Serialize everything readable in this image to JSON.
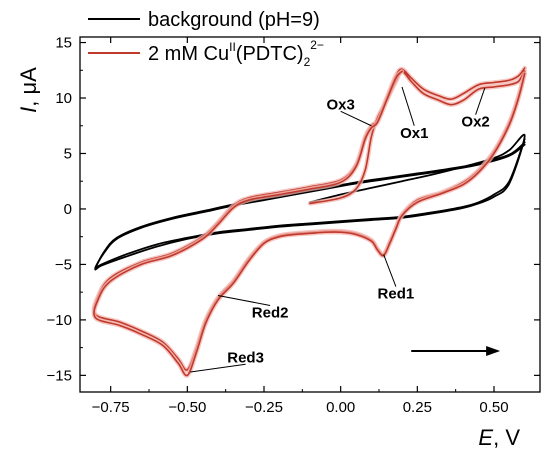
{
  "chart_data": {
    "type": "line",
    "xlabel_var": "E",
    "xlabel_unit": ", V",
    "ylabel_var": "I",
    "ylabel_unit": ", μA",
    "xlim": [
      -0.85,
      0.65
    ],
    "ylim": [
      -16.5,
      15.5
    ],
    "xticks": [
      -0.75,
      -0.5,
      -0.25,
      0.0,
      0.25,
      0.5
    ],
    "xtick_labels": [
      "−0.75",
      "−0.50",
      "−0.25",
      "0.00",
      "0.25",
      "0.50"
    ],
    "yticks": [
      -15,
      -10,
      -5,
      0,
      5,
      10,
      15
    ],
    "ytick_labels": [
      "−15",
      "−10",
      "−5",
      "0",
      "5",
      "10",
      "15"
    ],
    "legend_position": "top-left",
    "series": [
      {
        "name": "background (pH=9)",
        "color": "#000000",
        "cycles": [
          [
            [
              -0.1,
              0.6
            ],
            [
              0.0,
              1.3
            ],
            [
              0.1,
              1.9
            ],
            [
              0.2,
              2.5
            ],
            [
              0.3,
              3.1
            ],
            [
              0.4,
              3.8
            ],
            [
              0.5,
              4.6
            ],
            [
              0.55,
              5.3
            ],
            [
              0.6,
              6.6
            ],
            [
              0.55,
              2.3
            ],
            [
              0.5,
              1.1
            ],
            [
              0.45,
              0.5
            ],
            [
              0.4,
              0.1
            ],
            [
              0.3,
              -0.4
            ],
            [
              0.2,
              -0.8
            ],
            [
              0.1,
              -1.0
            ],
            [
              0.0,
              -1.2
            ],
            [
              -0.1,
              -1.4
            ],
            [
              -0.2,
              -1.6
            ],
            [
              -0.3,
              -1.9
            ],
            [
              -0.4,
              -2.2
            ],
            [
              -0.5,
              -2.7
            ],
            [
              -0.6,
              -3.4
            ],
            [
              -0.7,
              -4.3
            ],
            [
              -0.78,
              -5.1
            ],
            [
              -0.8,
              -5.4
            ],
            [
              -0.77,
              -3.8
            ],
            [
              -0.73,
              -2.6
            ],
            [
              -0.65,
              -1.6
            ],
            [
              -0.55,
              -0.8
            ],
            [
              -0.45,
              -0.2
            ],
            [
              -0.35,
              0.4
            ],
            [
              -0.25,
              0.9
            ],
            [
              -0.15,
              1.4
            ],
            [
              -0.05,
              1.9
            ],
            [
              0.05,
              2.4
            ],
            [
              0.15,
              2.8
            ],
            [
              0.25,
              3.2
            ],
            [
              0.35,
              3.6
            ],
            [
              0.45,
              4.1
            ],
            [
              0.55,
              4.9
            ],
            [
              0.6,
              6.0
            ]
          ],
          [
            [
              0.6,
              6.3
            ],
            [
              0.55,
              2.5
            ],
            [
              0.5,
              1.3
            ],
            [
              0.45,
              0.6
            ],
            [
              0.4,
              0.2
            ],
            [
              0.3,
              -0.3
            ],
            [
              0.2,
              -0.7
            ],
            [
              0.1,
              -0.9
            ],
            [
              0.0,
              -1.1
            ],
            [
              -0.1,
              -1.3
            ],
            [
              -0.2,
              -1.5
            ],
            [
              -0.3,
              -1.8
            ],
            [
              -0.4,
              -2.1
            ],
            [
              -0.5,
              -2.6
            ],
            [
              -0.6,
              -3.2
            ],
            [
              -0.7,
              -4.1
            ],
            [
              -0.78,
              -5.0
            ],
            [
              -0.8,
              -5.3
            ],
            [
              -0.77,
              -3.9
            ],
            [
              -0.73,
              -2.7
            ],
            [
              -0.65,
              -1.7
            ],
            [
              -0.55,
              -0.9
            ],
            [
              -0.45,
              -0.3
            ],
            [
              -0.35,
              0.3
            ],
            [
              -0.25,
              0.8
            ],
            [
              -0.15,
              1.3
            ],
            [
              -0.05,
              1.8
            ],
            [
              0.05,
              2.3
            ],
            [
              0.15,
              2.7
            ],
            [
              0.25,
              3.1
            ],
            [
              0.35,
              3.5
            ],
            [
              0.45,
              4.0
            ],
            [
              0.55,
              4.8
            ],
            [
              0.6,
              5.8
            ]
          ]
        ]
      },
      {
        "name": "2 mM Cu",
        "name_sup1": "II",
        "name_tail": "(PDTC)",
        "name_sub": "2",
        "name_sup2": "2−",
        "color": "#c0392b",
        "cycles": [
          [
            [
              -0.1,
              0.5
            ],
            [
              0.0,
              1.0
            ],
            [
              0.05,
              1.8
            ],
            [
              0.08,
              3.5
            ],
            [
              0.1,
              6.5
            ],
            [
              0.12,
              8.2
            ],
            [
              0.15,
              9.8
            ],
            [
              0.18,
              11.5
            ],
            [
              0.2,
              12.4
            ],
            [
              0.23,
              11.5
            ],
            [
              0.27,
              10.4
            ],
            [
              0.32,
              9.8
            ],
            [
              0.36,
              9.4
            ],
            [
              0.4,
              9.8
            ],
            [
              0.45,
              10.8
            ],
            [
              0.5,
              11.0
            ],
            [
              0.55,
              11.2
            ],
            [
              0.58,
              11.5
            ],
            [
              0.6,
              12.4
            ],
            [
              0.58,
              10.2
            ],
            [
              0.55,
              7.8
            ],
            [
              0.5,
              5.2
            ],
            [
              0.45,
              3.5
            ],
            [
              0.4,
              2.4
            ],
            [
              0.33,
              1.5
            ],
            [
              0.25,
              0.8
            ],
            [
              0.2,
              -0.5
            ],
            [
              0.18,
              -1.7
            ],
            [
              0.16,
              -3.0
            ],
            [
              0.14,
              -4.1
            ],
            [
              0.12,
              -3.6
            ],
            [
              0.1,
              -2.8
            ],
            [
              0.05,
              -2.2
            ],
            [
              0.0,
              -2.0
            ],
            [
              -0.05,
              -2.0
            ],
            [
              -0.1,
              -2.1
            ],
            [
              -0.15,
              -2.2
            ],
            [
              -0.2,
              -2.4
            ],
            [
              -0.25,
              -3.0
            ],
            [
              -0.3,
              -4.5
            ],
            [
              -0.35,
              -6.5
            ],
            [
              -0.4,
              -8.0
            ],
            [
              -0.44,
              -10.0
            ],
            [
              -0.47,
              -12.5
            ],
            [
              -0.5,
              -14.5
            ],
            [
              -0.53,
              -13.5
            ],
            [
              -0.58,
              -12.0
            ],
            [
              -0.65,
              -11.0
            ],
            [
              -0.72,
              -10.2
            ],
            [
              -0.8,
              -9.5
            ],
            [
              -0.79,
              -7.8
            ],
            [
              -0.75,
              -6.2
            ],
            [
              -0.65,
              -4.8
            ],
            [
              -0.55,
              -4.0
            ],
            [
              -0.45,
              -2.5
            ],
            [
              -0.4,
              -1.2
            ],
            [
              -0.35,
              0.3
            ],
            [
              -0.3,
              1.0
            ],
            [
              -0.2,
              1.5
            ],
            [
              -0.1,
              2.0
            ],
            [
              0.0,
              2.6
            ],
            [
              0.05,
              4.0
            ],
            [
              0.08,
              6.5
            ],
            [
              0.1,
              7.5
            ],
            [
              0.12,
              8.0
            ],
            [
              0.15,
              10.0
            ],
            [
              0.18,
              12.0
            ],
            [
              0.2,
              12.6
            ],
            [
              0.23,
              11.8
            ],
            [
              0.27,
              10.8
            ],
            [
              0.32,
              10.2
            ],
            [
              0.36,
              9.9
            ],
            [
              0.4,
              10.4
            ],
            [
              0.45,
              11.2
            ],
            [
              0.5,
              11.4
            ],
            [
              0.55,
              11.6
            ],
            [
              0.58,
              12.0
            ],
            [
              0.6,
              12.7
            ]
          ],
          [
            [
              0.6,
              12.2
            ],
            [
              0.58,
              10.0
            ],
            [
              0.55,
              7.6
            ],
            [
              0.5,
              5.0
            ],
            [
              0.45,
              3.3
            ],
            [
              0.4,
              2.2
            ],
            [
              0.33,
              1.4
            ],
            [
              0.25,
              0.6
            ],
            [
              0.2,
              -0.6
            ],
            [
              0.18,
              -1.8
            ],
            [
              0.16,
              -3.1
            ],
            [
              0.14,
              -4.2
            ],
            [
              0.12,
              -3.7
            ],
            [
              0.1,
              -2.9
            ],
            [
              0.05,
              -2.3
            ],
            [
              0.0,
              -2.1
            ],
            [
              -0.05,
              -2.1
            ],
            [
              -0.1,
              -2.2
            ],
            [
              -0.15,
              -2.3
            ],
            [
              -0.2,
              -2.5
            ],
            [
              -0.25,
              -3.1
            ],
            [
              -0.3,
              -4.7
            ],
            [
              -0.35,
              -6.7
            ],
            [
              -0.4,
              -8.2
            ],
            [
              -0.44,
              -10.3
            ],
            [
              -0.47,
              -12.9
            ],
            [
              -0.5,
              -15.0
            ],
            [
              -0.53,
              -13.9
            ],
            [
              -0.58,
              -12.3
            ],
            [
              -0.65,
              -11.3
            ],
            [
              -0.72,
              -10.5
            ],
            [
              -0.8,
              -9.8
            ],
            [
              -0.79,
              -8.1
            ],
            [
              -0.75,
              -6.5
            ],
            [
              -0.65,
              -5.0
            ],
            [
              -0.55,
              -4.2
            ],
            [
              -0.45,
              -2.7
            ],
            [
              -0.4,
              -1.4
            ],
            [
              -0.35,
              0.1
            ],
            [
              -0.3,
              0.8
            ],
            [
              -0.2,
              1.3
            ],
            [
              -0.1,
              1.8
            ],
            [
              0.0,
              2.4
            ],
            [
              0.05,
              3.8
            ],
            [
              0.08,
              6.3
            ],
            [
              0.1,
              7.3
            ],
            [
              0.12,
              7.8
            ],
            [
              0.15,
              9.8
            ],
            [
              0.18,
              11.8
            ],
            [
              0.2,
              12.4
            ]
          ]
        ]
      }
    ],
    "annotations": [
      {
        "text": "Ox3",
        "x": 0.1,
        "y": 7.5,
        "label_x": 0.0,
        "label_y": 8.8
      },
      {
        "text": "Ox1",
        "x": 0.2,
        "y": 11.0,
        "label_x": 0.24,
        "label_y": 7.5
      },
      {
        "text": "Ox2",
        "x": 0.47,
        "y": 10.9,
        "label_x": 0.44,
        "label_y": 8.5
      },
      {
        "text": "Red1",
        "x": 0.14,
        "y": -4.1,
        "label_x": 0.18,
        "label_y": -7.0
      },
      {
        "text": "Red2",
        "x": -0.4,
        "y": -7.8,
        "label_x": -0.23,
        "label_y": -8.7
      },
      {
        "text": "Red3",
        "x": -0.49,
        "y": -14.7,
        "label_x": -0.31,
        "label_y": -14.0
      }
    ],
    "arrow": {
      "x_from": 0.23,
      "x_to": 0.52,
      "y": -12.8
    }
  }
}
